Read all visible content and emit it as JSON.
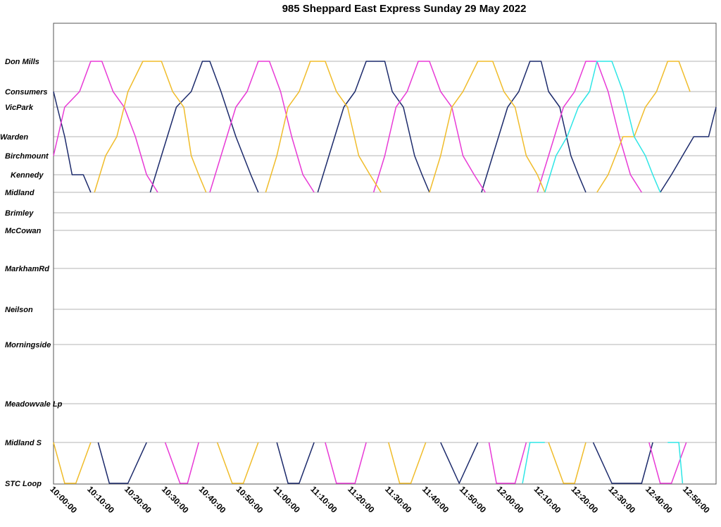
{
  "chart_data": {
    "type": "line",
    "title": "985 Sheppard East Express Sunday 29 May 2022",
    "xlabel": "",
    "ylabel": "",
    "x_range": [
      "10:00:00",
      "12:58:00"
    ],
    "x_ticks": [
      "10:00:00",
      "10:10:00",
      "10:20:00",
      "10:30:00",
      "10:40:00",
      "10:50:00",
      "11:00:00",
      "11:10:00",
      "11:20:00",
      "11:30:00",
      "11:40:00",
      "11:50:00",
      "12:00:00",
      "12:10:00",
      "12:20:00",
      "12:30:00",
      "12:40:00",
      "12:50:00"
    ],
    "stops": [
      "Don Mills",
      "Consumers",
      "VicPark",
      "Warden",
      "Birchmount",
      "Kennedy",
      "Midland",
      "Brimley",
      "McCowan",
      "MarkhamRd",
      "Neilson",
      "Morningside",
      "Meadowvale Lp",
      "Midland S",
      "STC Loop"
    ],
    "grid": true,
    "legend": "none",
    "colors": {
      "navy": "#1c2a6b",
      "magenta": "#e83ad6",
      "gold": "#f0bc2a",
      "cyan": "#2ee6e6"
    },
    "series": [
      {
        "color": "navy",
        "points": [
          [
            "10:00",
            "Consumers"
          ],
          [
            "10:01",
            "VicPark"
          ],
          [
            "10:03",
            "Warden"
          ],
          [
            "10:05",
            "Kennedy"
          ],
          [
            "10:08",
            "Kennedy"
          ],
          [
            "10:10",
            "Midland"
          ]
        ]
      },
      {
        "color": "navy",
        "points": [
          [
            "10:12",
            "Midland S"
          ],
          [
            "10:15",
            "STC Loop"
          ],
          [
            "10:20",
            "STC Loop"
          ],
          [
            "10:25",
            "Midland S"
          ]
        ]
      },
      {
        "color": "navy",
        "points": [
          [
            "10:26",
            "Midland"
          ],
          [
            "10:29",
            "Birchmount"
          ],
          [
            "10:33",
            "VicPark"
          ],
          [
            "10:37",
            "Consumers"
          ],
          [
            "10:40",
            "Don Mills"
          ],
          [
            "10:42",
            "Don Mills"
          ],
          [
            "10:45",
            "Consumers"
          ],
          [
            "10:49",
            "Warden"
          ],
          [
            "10:53",
            "Kennedy"
          ],
          [
            "10:55",
            "Midland"
          ]
        ]
      },
      {
        "color": "navy",
        "points": [
          [
            "11:00",
            "Midland S"
          ],
          [
            "11:03",
            "STC Loop"
          ],
          [
            "11:06",
            "STC Loop"
          ],
          [
            "11:10",
            "Midland S"
          ]
        ]
      },
      {
        "color": "navy",
        "points": [
          [
            "11:11",
            "Midland"
          ],
          [
            "11:14",
            "Birchmount"
          ],
          [
            "11:18",
            "VicPark"
          ],
          [
            "11:21",
            "Consumers"
          ],
          [
            "11:24",
            "Don Mills"
          ],
          [
            "11:29",
            "Don Mills"
          ],
          [
            "11:31",
            "Consumers"
          ],
          [
            "11:34",
            "VicPark"
          ],
          [
            "11:37",
            "Birchmount"
          ],
          [
            "11:39",
            "Kennedy"
          ],
          [
            "11:41",
            "Midland"
          ]
        ]
      },
      {
        "color": "navy",
        "points": [
          [
            "11:44",
            "Midland S"
          ],
          [
            "11:49",
            "STC Loop"
          ],
          [
            "11:54",
            "Midland S"
          ]
        ]
      },
      {
        "color": "navy",
        "points": [
          [
            "11:55",
            "Midland"
          ],
          [
            "11:58",
            "Birchmount"
          ],
          [
            "12:02",
            "VicPark"
          ],
          [
            "12:05",
            "Consumers"
          ],
          [
            "12:08",
            "Don Mills"
          ],
          [
            "12:11",
            "Don Mills"
          ],
          [
            "12:13",
            "Consumers"
          ],
          [
            "12:16",
            "VicPark"
          ],
          [
            "12:19",
            "Birchmount"
          ],
          [
            "12:21",
            "Kennedy"
          ],
          [
            "12:23",
            "Midland"
          ]
        ]
      },
      {
        "color": "navy",
        "points": [
          [
            "12:25",
            "Midland S"
          ],
          [
            "12:30",
            "STC Loop"
          ],
          [
            "12:38",
            "STC Loop"
          ],
          [
            "12:41",
            "Midland S"
          ]
        ]
      },
      {
        "color": "navy",
        "points": [
          [
            "12:43",
            "Midland"
          ],
          [
            "12:46",
            "Kennedy"
          ],
          [
            "12:49",
            "Birchmount"
          ],
          [
            "12:52",
            "Warden"
          ],
          [
            "12:56",
            "Warden"
          ],
          [
            "12:58",
            "VicPark"
          ]
        ]
      },
      {
        "color": "magenta",
        "points": [
          [
            "10:00",
            "Birchmount"
          ],
          [
            "10:03",
            "VicPark"
          ],
          [
            "10:07",
            "Consumers"
          ],
          [
            "10:10",
            "Don Mills"
          ],
          [
            "10:13",
            "Don Mills"
          ],
          [
            "10:16",
            "Consumers"
          ],
          [
            "10:19",
            "VicPark"
          ],
          [
            "10:22",
            "Warden"
          ],
          [
            "10:25",
            "Kennedy"
          ],
          [
            "10:28",
            "Midland"
          ]
        ]
      },
      {
        "color": "magenta",
        "points": [
          [
            "10:30",
            "Midland S"
          ],
          [
            "10:34",
            "STC Loop"
          ],
          [
            "10:36",
            "STC Loop"
          ],
          [
            "10:39",
            "Midland S"
          ]
        ]
      },
      {
        "color": "magenta",
        "points": [
          [
            "10:42",
            "Midland"
          ],
          [
            "10:45",
            "Birchmount"
          ],
          [
            "10:49",
            "VicPark"
          ],
          [
            "10:52",
            "Consumers"
          ],
          [
            "10:55",
            "Don Mills"
          ],
          [
            "10:58",
            "Don Mills"
          ],
          [
            "11:01",
            "Consumers"
          ],
          [
            "11:04",
            "Warden"
          ],
          [
            "11:07",
            "Kennedy"
          ],
          [
            "11:10",
            "Midland"
          ]
        ]
      },
      {
        "color": "magenta",
        "points": [
          [
            "11:13",
            "Midland S"
          ],
          [
            "11:16",
            "STC Loop"
          ],
          [
            "11:21",
            "STC Loop"
          ],
          [
            "11:24",
            "Midland S"
          ]
        ]
      },
      {
        "color": "magenta",
        "points": [
          [
            "11:26",
            "Midland"
          ],
          [
            "11:29",
            "Birchmount"
          ],
          [
            "11:32",
            "VicPark"
          ],
          [
            "11:35",
            "Consumers"
          ],
          [
            "11:38",
            "Don Mills"
          ],
          [
            "11:41",
            "Don Mills"
          ],
          [
            "11:44",
            "Consumers"
          ],
          [
            "11:47",
            "VicPark"
          ],
          [
            "11:50",
            "Birchmount"
          ],
          [
            "11:53",
            "Kennedy"
          ],
          [
            "11:56",
            "Midland"
          ]
        ]
      },
      {
        "color": "magenta",
        "points": [
          [
            "11:57",
            "Midland S"
          ],
          [
            "11:59",
            "STC Loop"
          ],
          [
            "12:04",
            "STC Loop"
          ],
          [
            "12:07",
            "Midland S"
          ]
        ]
      },
      {
        "color": "magenta",
        "points": [
          [
            "12:10",
            "Midland"
          ],
          [
            "12:13",
            "Birchmount"
          ],
          [
            "12:17",
            "VicPark"
          ],
          [
            "12:20",
            "Consumers"
          ],
          [
            "12:23",
            "Don Mills"
          ],
          [
            "12:26",
            "Don Mills"
          ],
          [
            "12:29",
            "Consumers"
          ],
          [
            "12:32",
            "Warden"
          ],
          [
            "12:35",
            "Kennedy"
          ],
          [
            "12:38",
            "Midland"
          ]
        ]
      },
      {
        "color": "magenta",
        "points": [
          [
            "12:40",
            "Midland S"
          ],
          [
            "12:43",
            "STC Loop"
          ],
          [
            "12:46",
            "STC Loop"
          ],
          [
            "12:50",
            "Midland S"
          ]
        ]
      },
      {
        "color": "gold",
        "points": [
          [
            "10:00",
            "Midland S"
          ],
          [
            "10:03",
            "STC Loop"
          ],
          [
            "10:06",
            "STC Loop"
          ],
          [
            "10:10",
            "Midland S"
          ]
        ]
      },
      {
        "color": "gold",
        "points": [
          [
            "10:11",
            "Midland"
          ],
          [
            "10:14",
            "Birchmount"
          ],
          [
            "10:17",
            "Warden"
          ],
          [
            "10:20",
            "Consumers"
          ],
          [
            "10:24",
            "Don Mills"
          ],
          [
            "10:29",
            "Don Mills"
          ],
          [
            "10:32",
            "Consumers"
          ],
          [
            "10:35",
            "VicPark"
          ],
          [
            "10:37",
            "Birchmount"
          ],
          [
            "10:39",
            "Kennedy"
          ],
          [
            "10:41",
            "Midland"
          ]
        ]
      },
      {
        "color": "gold",
        "points": [
          [
            "10:44",
            "Midland S"
          ],
          [
            "10:48",
            "STC Loop"
          ],
          [
            "10:51",
            "STC Loop"
          ],
          [
            "10:55",
            "Midland S"
          ]
        ]
      },
      {
        "color": "gold",
        "points": [
          [
            "10:57",
            "Midland"
          ],
          [
            "11:00",
            "Birchmount"
          ],
          [
            "11:03",
            "VicPark"
          ],
          [
            "11:06",
            "Consumers"
          ],
          [
            "11:09",
            "Don Mills"
          ],
          [
            "11:13",
            "Don Mills"
          ],
          [
            "11:16",
            "Consumers"
          ],
          [
            "11:19",
            "VicPark"
          ],
          [
            "11:22",
            "Birchmount"
          ],
          [
            "11:25",
            "Kennedy"
          ],
          [
            "11:28",
            "Midland"
          ]
        ]
      },
      {
        "color": "gold",
        "points": [
          [
            "11:30",
            "Midland S"
          ],
          [
            "11:33",
            "STC Loop"
          ],
          [
            "11:36",
            "STC Loop"
          ],
          [
            "11:40",
            "Midland S"
          ]
        ]
      },
      {
        "color": "gold",
        "points": [
          [
            "11:41",
            "Midland"
          ],
          [
            "11:44",
            "Birchmount"
          ],
          [
            "11:47",
            "VicPark"
          ],
          [
            "11:50",
            "Consumers"
          ],
          [
            "11:54",
            "Don Mills"
          ],
          [
            "11:58",
            "Don Mills"
          ],
          [
            "12:01",
            "Consumers"
          ],
          [
            "12:04",
            "VicPark"
          ],
          [
            "12:07",
            "Birchmount"
          ],
          [
            "12:10",
            "Kennedy"
          ],
          [
            "12:12",
            "Midland"
          ]
        ]
      },
      {
        "color": "gold",
        "points": [
          [
            "12:13",
            "Midland S"
          ],
          [
            "12:17",
            "STC Loop"
          ],
          [
            "12:20",
            "STC Loop"
          ],
          [
            "12:23",
            "Midland S"
          ]
        ]
      },
      {
        "color": "gold",
        "points": [
          [
            "12:26",
            "Midland"
          ],
          [
            "12:29",
            "Kennedy"
          ],
          [
            "12:31",
            "Birchmount"
          ],
          [
            "12:33",
            "Warden"
          ],
          [
            "12:36",
            "Warden"
          ],
          [
            "12:39",
            "VicPark"
          ],
          [
            "12:42",
            "Consumers"
          ],
          [
            "12:45",
            "Don Mills"
          ],
          [
            "12:48",
            "Don Mills"
          ],
          [
            "12:51",
            "Consumers"
          ]
        ]
      },
      {
        "color": "cyan",
        "points": [
          [
            "12:06",
            "STC Loop"
          ],
          [
            "12:08",
            "Midland S"
          ],
          [
            "12:12",
            "Midland S"
          ]
        ]
      },
      {
        "color": "cyan",
        "points": [
          [
            "12:12",
            "Midland"
          ],
          [
            "12:15",
            "Birchmount"
          ],
          [
            "12:18",
            "Warden"
          ],
          [
            "12:21",
            "VicPark"
          ],
          [
            "12:24",
            "Consumers"
          ],
          [
            "12:26",
            "Don Mills"
          ],
          [
            "12:30",
            "Don Mills"
          ],
          [
            "12:33",
            "Consumers"
          ],
          [
            "12:36",
            "Warden"
          ],
          [
            "12:39",
            "Birchmount"
          ],
          [
            "12:41",
            "Kennedy"
          ],
          [
            "12:43",
            "Midland"
          ]
        ]
      },
      {
        "color": "cyan",
        "points": [
          [
            "12:45",
            "Midland S"
          ],
          [
            "12:48",
            "Midland S"
          ],
          [
            "12:49",
            "STC Loop"
          ]
        ]
      }
    ]
  }
}
